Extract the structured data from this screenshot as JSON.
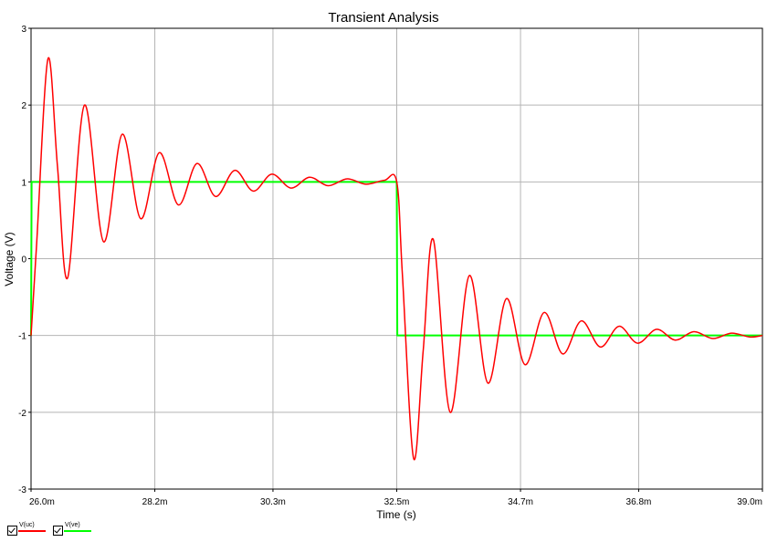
{
  "chart_data": {
    "type": "line",
    "title": "Transient Analysis",
    "xlabel": "Time (s)",
    "ylabel": "Voltage (V)",
    "xlim": [
      26.0,
      39.0
    ],
    "ylim": [
      -3,
      3
    ],
    "x_unit": "ms",
    "x_ticks": [
      {
        "value": 26.0,
        "label": "26.0m"
      },
      {
        "value": 28.2,
        "label": "28.2m"
      },
      {
        "value": 30.3,
        "label": "30.3m"
      },
      {
        "value": 32.5,
        "label": "32.5m"
      },
      {
        "value": 34.7,
        "label": "34.7m"
      },
      {
        "value": 36.8,
        "label": "36.8m"
      },
      {
        "value": 39.0,
        "label": "39.0m"
      }
    ],
    "y_ticks": [
      {
        "value": 3,
        "label": "3"
      },
      {
        "value": 2,
        "label": "2"
      },
      {
        "value": 1,
        "label": "1"
      },
      {
        "value": 0,
        "label": "0"
      },
      {
        "value": -1,
        "label": "-1"
      },
      {
        "value": -2,
        "label": "-2"
      },
      {
        "value": -3,
        "label": "-3"
      }
    ],
    "grid": true,
    "series": [
      {
        "name": "V(uc)",
        "color": "#ff0000",
        "x": [
          26.0,
          26.1,
          26.3,
          26.47,
          26.65,
          26.95,
          27.29,
          27.62,
          27.95,
          28.28,
          28.62,
          28.95,
          29.28,
          29.62,
          29.95,
          30.28,
          30.62,
          30.95,
          31.28,
          31.62,
          31.95,
          32.28,
          32.5,
          32.6,
          32.8,
          32.97,
          33.15,
          33.45,
          33.79,
          34.12,
          34.45,
          34.78,
          35.12,
          35.45,
          35.78,
          36.12,
          36.45,
          36.78,
          37.12,
          37.45,
          37.78,
          38.12,
          38.45,
          38.78,
          39.0
        ],
        "y": [
          -1.0,
          0.2,
          2.6,
          1.2,
          -0.25,
          2.0,
          0.22,
          1.62,
          0.52,
          1.38,
          0.7,
          1.24,
          0.81,
          1.15,
          0.88,
          1.1,
          0.92,
          1.06,
          0.95,
          1.04,
          0.97,
          1.02,
          1.0,
          -0.2,
          -2.6,
          -1.2,
          0.25,
          -2.0,
          -0.22,
          -1.62,
          -0.52,
          -1.38,
          -0.7,
          -1.24,
          -0.81,
          -1.15,
          -0.88,
          -1.1,
          -0.92,
          -1.06,
          -0.95,
          -1.04,
          -0.97,
          -1.02,
          -1.0
        ]
      },
      {
        "name": "V(ve)",
        "color": "#00ff00",
        "x": [
          26.0,
          26.01,
          32.5,
          32.51,
          39.0
        ],
        "y": [
          -1.0,
          1.0,
          1.0,
          -1.0,
          -1.0
        ]
      }
    ],
    "legend": "bottom-left"
  }
}
